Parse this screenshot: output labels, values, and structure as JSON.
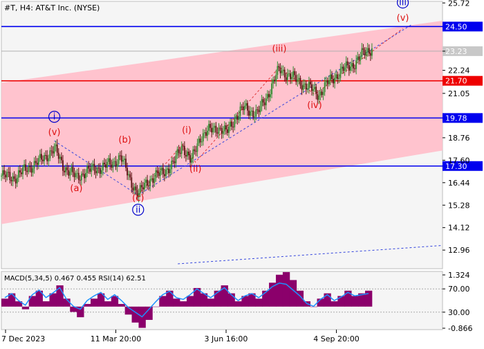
{
  "chart_data": {
    "type": "candlestick",
    "header": "#T, H4:  AT&T Inc. (NYSE)",
    "price_axis": {
      "min": 12.0,
      "max": 25.8,
      "ticks": [
        "25.72",
        "23.23",
        "22.24",
        "21.05",
        "18.76",
        "17.60",
        "16.44",
        "15.28",
        "14.12",
        "12.96"
      ],
      "tick_values": [
        25.72,
        23.23,
        22.24,
        21.05,
        18.76,
        17.6,
        16.44,
        15.28,
        14.12,
        12.96
      ],
      "current_price": 23.23,
      "current_label": "23.23"
    },
    "time_axis": {
      "labels": [
        "7 Dec 2023",
        "11 Mar 20:00",
        "3 Jun 16:00",
        "4 Sep 20:00"
      ],
      "positions": [
        0.0,
        0.25,
        0.5,
        0.75
      ]
    },
    "levels": [
      {
        "value": 24.5,
        "label": "24.50",
        "color": "#0000ee"
      },
      {
        "value": 21.7,
        "label": "21.70",
        "color": "#ee0000"
      },
      {
        "value": 19.78,
        "label": "19.78",
        "color": "#0000ee"
      },
      {
        "value": 17.3,
        "label": "17.30",
        "color": "#0000ee"
      }
    ],
    "channel": {
      "fill": "#ffc0cb",
      "upper": [
        [
          0.0,
          21.6
        ],
        [
          1.0,
          24.8
        ]
      ],
      "lower": [
        [
          0.0,
          14.3
        ],
        [
          1.0,
          18.1
        ]
      ]
    },
    "price_path": [
      [
        0.0,
        16.8
      ],
      [
        0.03,
        16.7
      ],
      [
        0.06,
        17.2
      ],
      [
        0.09,
        17.6
      ],
      [
        0.12,
        18.2
      ],
      [
        0.14,
        17.3
      ],
      [
        0.17,
        16.7
      ],
      [
        0.19,
        17.0
      ],
      [
        0.22,
        17.2
      ],
      [
        0.25,
        17.4
      ],
      [
        0.27,
        17.8
      ],
      [
        0.29,
        16.7
      ],
      [
        0.31,
        15.8
      ],
      [
        0.33,
        16.5
      ],
      [
        0.36,
        16.9
      ],
      [
        0.39,
        17.4
      ],
      [
        0.41,
        18.4
      ],
      [
        0.43,
        17.5
      ],
      [
        0.45,
        18.8
      ],
      [
        0.47,
        19.1
      ],
      [
        0.49,
        19.3
      ],
      [
        0.51,
        19.0
      ],
      [
        0.53,
        19.8
      ],
      [
        0.55,
        20.3
      ],
      [
        0.58,
        20.0
      ],
      [
        0.6,
        20.8
      ],
      [
        0.62,
        21.8
      ],
      [
        0.63,
        22.3
      ],
      [
        0.65,
        22.0
      ],
      [
        0.68,
        21.6
      ],
      [
        0.7,
        21.3
      ],
      [
        0.72,
        21.0
      ],
      [
        0.74,
        21.6
      ],
      [
        0.77,
        22.2
      ],
      [
        0.8,
        22.6
      ],
      [
        0.82,
        23.1
      ],
      [
        0.84,
        23.4
      ]
    ],
    "wave_labels": [
      {
        "text": "i",
        "t": 0.12,
        "price": 19.7,
        "color": "#0000cc",
        "circled": true
      },
      {
        "text": "(v)",
        "t": 0.12,
        "price": 18.9,
        "color": "#dd1111",
        "circled": false
      },
      {
        "text": "(a)",
        "t": 0.17,
        "price": 16.0,
        "color": "#dd1111",
        "circled": false
      },
      {
        "text": "(b)",
        "t": 0.28,
        "price": 18.5,
        "color": "#dd1111",
        "circled": false
      },
      {
        "text": "(c)",
        "t": 0.31,
        "price": 15.5,
        "color": "#dd1111",
        "circled": false
      },
      {
        "text": "ii",
        "t": 0.31,
        "price": 14.9,
        "color": "#0000cc",
        "circled": true
      },
      {
        "text": "(i)",
        "t": 0.42,
        "price": 19.0,
        "color": "#dd1111",
        "circled": false
      },
      {
        "text": "(ii)",
        "t": 0.44,
        "price": 17.0,
        "color": "#dd1111",
        "circled": false
      },
      {
        "text": "(iii)",
        "t": 0.63,
        "price": 23.2,
        "color": "#dd1111",
        "circled": false
      },
      {
        "text": "(iv)",
        "t": 0.71,
        "price": 20.3,
        "color": "#dd1111",
        "circled": false
      },
      {
        "text": "(v)",
        "t": 0.91,
        "price": 24.8,
        "color": "#dd1111",
        "circled": false
      },
      {
        "text": "iii",
        "t": 0.91,
        "price": 25.6,
        "color": "#0000cc",
        "circled": true
      }
    ],
    "wave_path_blue": [
      [
        0.12,
        18.6
      ],
      [
        0.31,
        15.8
      ],
      [
        0.93,
        24.6
      ]
    ],
    "wave_path_red": [
      [
        0.31,
        15.8
      ],
      [
        0.41,
        18.4
      ],
      [
        0.44,
        17.5
      ],
      [
        0.63,
        22.4
      ],
      [
        0.71,
        21.0
      ],
      [
        0.91,
        24.4
      ]
    ],
    "indicator": {
      "label": "MACD(5,34,5) 0.467 0.455 RSI(14) 62.51",
      "ticks": [
        "1.324",
        "70.00",
        "30.00",
        "-0.866"
      ],
      "macd_range": [
        -0.866,
        1.324
      ],
      "rsi_levels": [
        70,
        30
      ],
      "macd": [
        0.3,
        0.5,
        0.2,
        -0.1,
        0.4,
        0.6,
        0.2,
        0.5,
        0.8,
        0.3,
        -0.2,
        -0.4,
        0.1,
        0.3,
        0.5,
        0.2,
        0.4,
        0.1,
        -0.3,
        -0.6,
        -0.8,
        -0.5,
        0.0,
        0.4,
        0.6,
        0.3,
        0.2,
        0.4,
        0.7,
        0.5,
        0.3,
        0.6,
        0.8,
        0.5,
        0.2,
        0.4,
        0.5,
        0.3,
        0.6,
        0.9,
        1.2,
        1.3,
        1.0,
        0.6,
        0.2,
        0.0,
        0.3,
        0.5,
        0.2,
        0.4,
        0.6,
        0.4,
        0.5,
        0.6
      ],
      "rsi": [
        55,
        62,
        50,
        42,
        60,
        68,
        55,
        63,
        72,
        52,
        40,
        35,
        50,
        58,
        64,
        52,
        60,
        50,
        38,
        30,
        22,
        35,
        48,
        60,
        66,
        55,
        52,
        60,
        70,
        62,
        55,
        64,
        72,
        60,
        50,
        58,
        62,
        55,
        64,
        74,
        80,
        78,
        68,
        58,
        45,
        40,
        52,
        60,
        50,
        56,
        64,
        58,
        60,
        62
      ]
    }
  }
}
